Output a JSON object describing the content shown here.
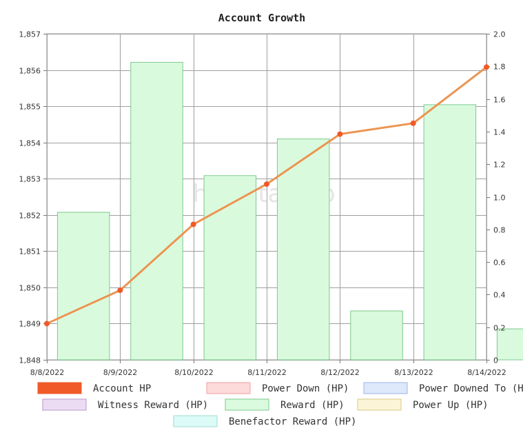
{
  "chart_data": {
    "type": "bar+line",
    "title": "Account Growth",
    "watermark": "hivestats.io",
    "x_categories": [
      "8/8/2022",
      "8/9/2022",
      "8/10/2022",
      "8/11/2022",
      "8/12/2022",
      "8/13/2022",
      "8/14/2022"
    ],
    "y_left": {
      "ticks": [
        "1,848",
        "1,849",
        "1,850",
        "1,851",
        "1,852",
        "1,853",
        "1,854",
        "1,855",
        "1,856",
        "1,857"
      ],
      "min": 1848,
      "max": 1857
    },
    "y_right": {
      "ticks": [
        "0",
        "0.2",
        "0.4",
        "0.6",
        "0.8",
        "1.0",
        "1.2",
        "1.4",
        "1.6",
        "1.8",
        "2.0"
      ],
      "min": 0,
      "max": 2.0
    },
    "line_series": {
      "name": "Account HP",
      "axis": "left",
      "color": "#f05a28",
      "line_color": "#ec9450",
      "x": [
        "8/8/2022",
        "8/9/2022",
        "8/10/2022",
        "8/11/2022",
        "8/12/2022",
        "8/13/2022",
        "8/14/2022"
      ],
      "values": [
        1849.0,
        1849.92,
        1851.74,
        1852.85,
        1854.23,
        1854.53,
        1856.08
      ]
    },
    "bar_series": {
      "name": "Reward (HP)",
      "axis": "right",
      "fill": "#dafade",
      "stroke": "#7cc98c",
      "values": [
        0.905,
        1.825,
        1.13,
        1.355,
        0.3,
        1.565,
        0.19
      ]
    },
    "grid": true,
    "legend": {
      "position": "bottom",
      "items": [
        {
          "label": "Account HP",
          "fill": "#f05a28",
          "stroke": "#f05a28"
        },
        {
          "label": "Power Down (HP)",
          "fill": "#fddada",
          "stroke": "#f3a0a0"
        },
        {
          "label": "Power Downed To (HP)",
          "fill": "#dde8fb",
          "stroke": "#9db6e6"
        },
        {
          "label": "Witness Reward (HP)",
          "fill": "#ecdcf3",
          "stroke": "#b996c9"
        },
        {
          "label": "Reward (HP)",
          "fill": "#dafade",
          "stroke": "#7cc98c"
        },
        {
          "label": "Power Up (HP)",
          "fill": "#fbf4d6",
          "stroke": "#d9c98a"
        },
        {
          "label": "Benefactor Reward (HP)",
          "fill": "#dcfaf6",
          "stroke": "#9fdcd2"
        }
      ]
    }
  }
}
